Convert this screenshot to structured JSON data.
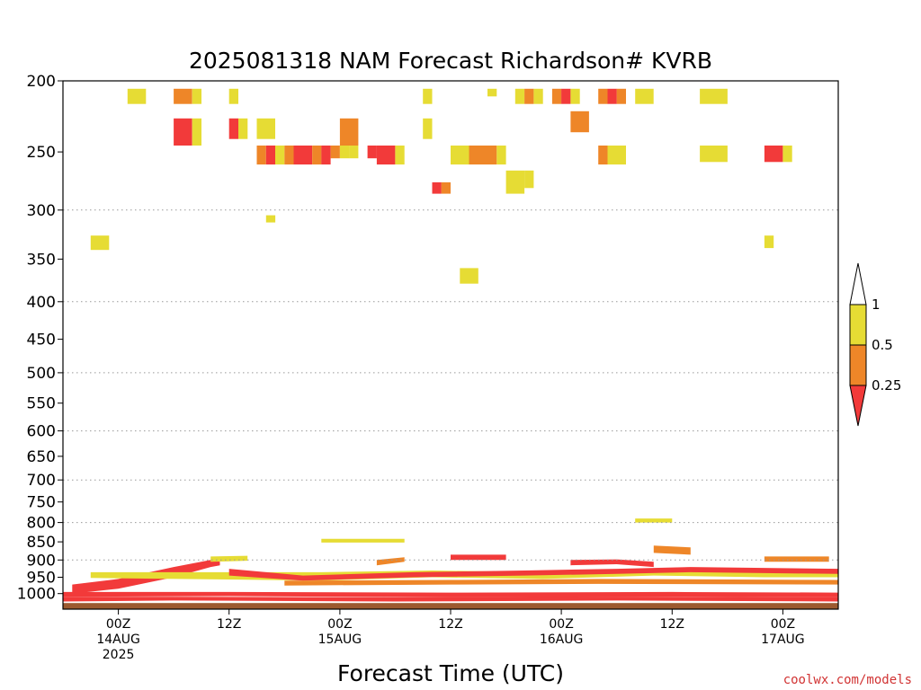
{
  "chart_data": {
    "type": "heatmap",
    "title": "2025081318 NAM Forecast Richardson# KVRB",
    "xlabel": "Forecast Time (UTC)",
    "ylabel": "",
    "y_scale": "log",
    "y_inverted": true,
    "ylim": [
      1050,
      200
    ],
    "y_ticks": [
      200,
      250,
      300,
      350,
      400,
      450,
      500,
      550,
      600,
      650,
      700,
      750,
      800,
      850,
      900,
      950,
      1000
    ],
    "y_gridlines": [
      300,
      400,
      500,
      600,
      700,
      800,
      900
    ],
    "xlim": [
      "2025-08-13T18:00Z",
      "2025-08-17T06:00Z"
    ],
    "x_ticks": [
      {
        "time": "2025-08-14T00:00Z",
        "lines": [
          "00Z",
          "14AUG",
          "2025"
        ]
      },
      {
        "time": "2025-08-14T12:00Z",
        "lines": [
          "12Z"
        ]
      },
      {
        "time": "2025-08-15T00:00Z",
        "lines": [
          "00Z",
          "15AUG"
        ]
      },
      {
        "time": "2025-08-15T12:00Z",
        "lines": [
          "12Z"
        ]
      },
      {
        "time": "2025-08-16T00:00Z",
        "lines": [
          "00Z",
          "16AUG"
        ]
      },
      {
        "time": "2025-08-16T12:00Z",
        "lines": [
          "12Z"
        ]
      },
      {
        "time": "2025-08-17T00:00Z",
        "lines": [
          "00Z",
          "17AUG"
        ]
      }
    ],
    "color_scale": {
      "levels": [
        0.25,
        0.5,
        1
      ],
      "labels": [
        "0.25",
        "0.5",
        "1"
      ],
      "colors": {
        "below_0.25": "#f23a3a",
        "0.25_0.5": "#ee8628",
        "0.5_1": "#e6dc34",
        "above_1": "#ffffff"
      }
    },
    "ground_color": "#9c5a2f",
    "upper_cells": [
      [
        "2025-08-14T01:00Z",
        "2025-08-14T03:00Z",
        205,
        215,
        "y"
      ],
      [
        "2025-08-14T06:00Z",
        "2025-08-14T08:00Z",
        205,
        215,
        "o"
      ],
      [
        "2025-08-14T08:00Z",
        "2025-08-14T09:00Z",
        205,
        215,
        "y"
      ],
      [
        "2025-08-14T12:00Z",
        "2025-08-14T13:00Z",
        205,
        215,
        "y"
      ],
      [
        "2025-08-14T06:00Z",
        "2025-08-14T08:00Z",
        225,
        245,
        "r"
      ],
      [
        "2025-08-14T08:00Z",
        "2025-08-14T09:00Z",
        225,
        245,
        "y"
      ],
      [
        "2025-08-14T12:00Z",
        "2025-08-14T13:00Z",
        225,
        240,
        "r"
      ],
      [
        "2025-08-14T13:00Z",
        "2025-08-14T14:00Z",
        225,
        240,
        "y"
      ],
      [
        "2025-08-14T15:00Z",
        "2025-08-14T17:00Z",
        225,
        240,
        "y"
      ],
      [
        "2025-08-15T00:00Z",
        "2025-08-15T02:00Z",
        225,
        245,
        "o"
      ],
      [
        "2025-08-15T09:00Z",
        "2025-08-15T10:00Z",
        205,
        215,
        "y"
      ],
      [
        "2025-08-15T09:00Z",
        "2025-08-15T10:00Z",
        225,
        240,
        "y"
      ],
      [
        "2025-08-14T15:00Z",
        "2025-08-14T16:00Z",
        245,
        260,
        "o"
      ],
      [
        "2025-08-14T16:00Z",
        "2025-08-14T17:00Z",
        245,
        260,
        "r"
      ],
      [
        "2025-08-14T17:00Z",
        "2025-08-14T18:00Z",
        245,
        260,
        "y"
      ],
      [
        "2025-08-14T18:00Z",
        "2025-08-14T19:00Z",
        245,
        260,
        "o"
      ],
      [
        "2025-08-14T19:00Z",
        "2025-08-14T21:00Z",
        245,
        260,
        "r"
      ],
      [
        "2025-08-14T21:00Z",
        "2025-08-14T22:00Z",
        245,
        260,
        "o"
      ],
      [
        "2025-08-14T22:00Z",
        "2025-08-14T23:00Z",
        245,
        260,
        "r"
      ],
      [
        "2025-08-14T23:00Z",
        "2025-08-15T00:00Z",
        245,
        255,
        "o"
      ],
      [
        "2025-08-15T00:00Z",
        "2025-08-15T01:00Z",
        245,
        255,
        "y"
      ],
      [
        "2025-08-15T01:00Z",
        "2025-08-15T02:00Z",
        245,
        255,
        "y"
      ],
      [
        "2025-08-15T03:00Z",
        "2025-08-15T04:00Z",
        245,
        255,
        "r"
      ],
      [
        "2025-08-15T04:00Z",
        "2025-08-15T06:00Z",
        245,
        260,
        "r"
      ],
      [
        "2025-08-15T06:00Z",
        "2025-08-15T07:00Z",
        245,
        260,
        "y"
      ],
      [
        "2025-08-15T10:00Z",
        "2025-08-15T11:00Z",
        275,
        285,
        "r"
      ],
      [
        "2025-08-15T11:00Z",
        "2025-08-15T12:00Z",
        275,
        285,
        "o"
      ],
      [
        "2025-08-15T12:00Z",
        "2025-08-15T14:00Z",
        245,
        260,
        "y"
      ],
      [
        "2025-08-15T14:00Z",
        "2025-08-15T17:00Z",
        245,
        260,
        "o"
      ],
      [
        "2025-08-15T17:00Z",
        "2025-08-15T18:00Z",
        245,
        260,
        "y"
      ],
      [
        "2025-08-15T19:00Z",
        "2025-08-15T20:00Z",
        205,
        215,
        "y"
      ],
      [
        "2025-08-15T20:00Z",
        "2025-08-15T21:00Z",
        205,
        215,
        "o"
      ],
      [
        "2025-08-15T21:00Z",
        "2025-08-15T22:00Z",
        205,
        215,
        "y"
      ],
      [
        "2025-08-15T18:00Z",
        "2025-08-15T20:00Z",
        265,
        285,
        "y"
      ],
      [
        "2025-08-15T20:00Z",
        "2025-08-15T21:00Z",
        265,
        280,
        "y"
      ],
      [
        "2025-08-15T16:00Z",
        "2025-08-15T17:00Z",
        205,
        210,
        "y"
      ],
      [
        "2025-08-15T23:00Z",
        "2025-08-16T00:00Z",
        205,
        215,
        "o"
      ],
      [
        "2025-08-16T00:00Z",
        "2025-08-16T01:00Z",
        205,
        215,
        "r"
      ],
      [
        "2025-08-16T01:00Z",
        "2025-08-16T02:00Z",
        205,
        215,
        "y"
      ],
      [
        "2025-08-16T01:00Z",
        "2025-08-16T03:00Z",
        220,
        235,
        "o"
      ],
      [
        "2025-08-16T04:00Z",
        "2025-08-16T05:00Z",
        205,
        215,
        "o"
      ],
      [
        "2025-08-16T05:00Z",
        "2025-08-16T06:00Z",
        205,
        215,
        "r"
      ],
      [
        "2025-08-16T06:00Z",
        "2025-08-16T07:00Z",
        205,
        215,
        "o"
      ],
      [
        "2025-08-16T08:00Z",
        "2025-08-16T10:00Z",
        205,
        215,
        "y"
      ],
      [
        "2025-08-16T04:00Z",
        "2025-08-16T05:00Z",
        245,
        260,
        "o"
      ],
      [
        "2025-08-16T05:00Z",
        "2025-08-16T07:00Z",
        245,
        260,
        "y"
      ],
      [
        "2025-08-16T15:00Z",
        "2025-08-16T18:00Z",
        205,
        215,
        "y"
      ],
      [
        "2025-08-16T15:00Z",
        "2025-08-16T18:00Z",
        245,
        258,
        "y"
      ],
      [
        "2025-08-16T22:00Z",
        "2025-08-17T00:00Z",
        245,
        258,
        "r"
      ],
      [
        "2025-08-17T00:00Z",
        "2025-08-17T01:00Z",
        245,
        258,
        "y"
      ],
      [
        "2025-08-13T21:00Z",
        "2025-08-13T23:00Z",
        325,
        340,
        "y"
      ],
      [
        "2025-08-14T16:00Z",
        "2025-08-14T17:00Z",
        305,
        312,
        "y"
      ],
      [
        "2025-08-15T13:00Z",
        "2025-08-15T15:00Z",
        360,
        378,
        "y"
      ],
      [
        "2025-08-16T22:00Z",
        "2025-08-16T23:00Z",
        325,
        338,
        "y"
      ]
    ],
    "low_bands": [
      {
        "color": "r",
        "pts": [
          [
            "2025-08-13T19:00Z",
            1000,
            972
          ],
          [
            "2025-08-14T00:00Z",
            985,
            955
          ],
          [
            "2025-08-14T06:00Z",
            950,
            920
          ],
          [
            "2025-08-14T10:00Z",
            920,
            900
          ],
          [
            "2025-08-14T11:00Z",
            915,
            905
          ]
        ]
      },
      {
        "color": "y",
        "pts": [
          [
            "2025-08-14T10:00Z",
            905,
            890
          ],
          [
            "2025-08-14T14:00Z",
            902,
            888
          ]
        ]
      },
      {
        "color": "o",
        "pts": [
          [
            "2025-08-15T04:00Z",
            915,
            900
          ],
          [
            "2025-08-15T07:00Z",
            905,
            892
          ]
        ]
      },
      {
        "color": "y",
        "pts": [
          [
            "2025-08-14T22:00Z",
            852,
            842
          ],
          [
            "2025-08-15T07:00Z",
            852,
            842
          ]
        ]
      },
      {
        "color": "r",
        "pts": [
          [
            "2025-08-15T12:00Z",
            900,
            885
          ],
          [
            "2025-08-15T18:00Z",
            900,
            885
          ]
        ]
      },
      {
        "color": "r",
        "pts": [
          [
            "2025-08-16T01:00Z",
            915,
            900
          ],
          [
            "2025-08-16T06:00Z",
            912,
            898
          ],
          [
            "2025-08-16T10:00Z",
            920,
            905
          ]
        ]
      },
      {
        "color": "o",
        "pts": [
          [
            "2025-08-16T10:00Z",
            880,
            860
          ],
          [
            "2025-08-16T14:00Z",
            885,
            865
          ]
        ]
      },
      {
        "color": "y",
        "pts": [
          [
            "2025-08-16T08:00Z",
            800,
            790
          ],
          [
            "2025-08-16T12:00Z",
            800,
            790
          ]
        ]
      },
      {
        "color": "o",
        "pts": [
          [
            "2025-08-16T22:00Z",
            905,
            890
          ],
          [
            "2025-08-17T05:00Z",
            905,
            890
          ]
        ]
      },
      {
        "color": "y",
        "pts": [
          [
            "2025-08-13T21:00Z",
            952,
            935
          ],
          [
            "2025-08-14T22:00Z",
            960,
            935
          ],
          [
            "2025-08-15T10:00Z",
            950,
            930
          ],
          [
            "2025-08-15T22:00Z",
            955,
            935
          ],
          [
            "2025-08-16T10:00Z",
            945,
            925
          ],
          [
            "2025-08-16T22:00Z",
            950,
            930
          ],
          [
            "2025-08-17T06:00Z",
            950,
            930
          ]
        ]
      },
      {
        "color": "r",
        "pts": [
          [
            "2025-08-14T12:00Z",
            945,
            925
          ],
          [
            "2025-08-14T20:00Z",
            960,
            945
          ],
          [
            "2025-08-15T08:00Z",
            950,
            935
          ],
          [
            "2025-08-15T20:00Z",
            945,
            930
          ],
          [
            "2025-08-16T06:00Z",
            940,
            925
          ],
          [
            "2025-08-16T14:00Z",
            935,
            920
          ],
          [
            "2025-08-17T06:00Z",
            940,
            925
          ]
        ]
      },
      {
        "color": "o",
        "pts": [
          [
            "2025-08-14T18:00Z",
            975,
            960
          ],
          [
            "2025-08-15T12:00Z",
            972,
            958
          ],
          [
            "2025-08-16T04:00Z",
            970,
            955
          ],
          [
            "2025-08-17T06:00Z",
            972,
            958
          ]
        ]
      },
      {
        "color": "r",
        "pts": [
          [
            "2025-08-13T18:00Z",
            1010,
            995
          ],
          [
            "2025-08-14T12:00Z",
            1008,
            995
          ],
          [
            "2025-08-15T12:00Z",
            1012,
            997
          ],
          [
            "2025-08-16T12:00Z",
            1010,
            995
          ],
          [
            "2025-08-17T06:00Z",
            1012,
            997
          ]
        ]
      },
      {
        "color": "r",
        "pts": [
          [
            "2025-08-13T18:00Z",
            1025,
            1010
          ],
          [
            "2025-08-14T06:00Z",
            1022,
            1010
          ],
          [
            "2025-08-15T06:00Z",
            1025,
            1012
          ],
          [
            "2025-08-16T06:00Z",
            1022,
            1010
          ],
          [
            "2025-08-17T06:00Z",
            1025,
            1012
          ]
        ]
      }
    ]
  },
  "labels": {
    "title": "2025081318 NAM Forecast Richardson# KVRB",
    "xtitle": "Forecast Time (UTC)",
    "credit": "coolwx.com/models"
  }
}
